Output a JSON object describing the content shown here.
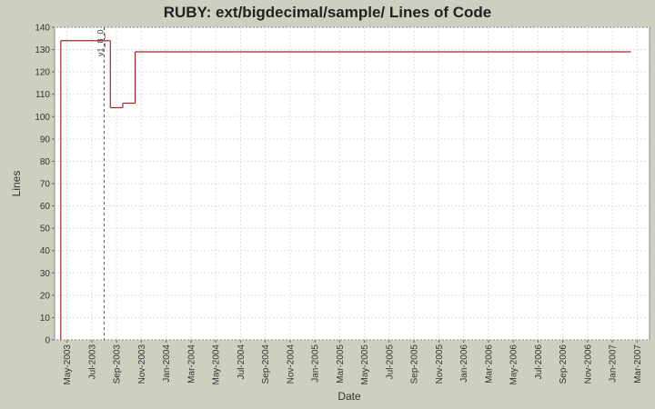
{
  "chart_data": {
    "type": "step",
    "title": "RUBY: ext/bigdecimal/sample/ Lines of Code",
    "x_label": "Date",
    "y_label": "Lines",
    "x": [
      "2003-04",
      "2003-08",
      "2003-09",
      "2003-10",
      "2007-02"
    ],
    "series": [
      {
        "name": "Lines",
        "color": "#a0282d",
        "values": [
          134,
          104,
          106,
          129,
          129
        ]
      }
    ],
    "xlim": [
      "2003-04",
      "2007-04"
    ],
    "xticks": [
      {
        "value": "2003-05",
        "label": "May-2003"
      },
      {
        "value": "2003-07",
        "label": "Jul-2003"
      },
      {
        "value": "2003-09",
        "label": "Sep-2003"
      },
      {
        "value": "2003-11",
        "label": "Nov-2003"
      },
      {
        "value": "2004-01",
        "label": "Jan-2004"
      },
      {
        "value": "2004-03",
        "label": "Mar-2004"
      },
      {
        "value": "2004-05",
        "label": "May-2004"
      },
      {
        "value": "2004-07",
        "label": "Jul-2004"
      },
      {
        "value": "2004-09",
        "label": "Sep-2004"
      },
      {
        "value": "2004-11",
        "label": "Nov-2004"
      },
      {
        "value": "2005-01",
        "label": "Jan-2005"
      },
      {
        "value": "2005-03",
        "label": "Mar-2005"
      },
      {
        "value": "2005-05",
        "label": "May-2005"
      },
      {
        "value": "2005-07",
        "label": "Jul-2005"
      },
      {
        "value": "2005-09",
        "label": "Sep-2005"
      },
      {
        "value": "2005-11",
        "label": "Nov-2005"
      },
      {
        "value": "2006-01",
        "label": "Jan-2006"
      },
      {
        "value": "2006-03",
        "label": "Mar-2006"
      },
      {
        "value": "2006-05",
        "label": "May-2006"
      },
      {
        "value": "2006-07",
        "label": "Jul-2006"
      },
      {
        "value": "2006-09",
        "label": "Sep-2006"
      },
      {
        "value": "2006-11",
        "label": "Nov-2006"
      },
      {
        "value": "2007-01",
        "label": "Jan-2007"
      },
      {
        "value": "2007-03",
        "label": "Mar-2007"
      }
    ],
    "ylim": [
      0,
      140
    ],
    "yticks": [
      0,
      10,
      20,
      30,
      40,
      50,
      60,
      70,
      80,
      90,
      100,
      110,
      120,
      130,
      140
    ],
    "grid": true,
    "annotations": [
      {
        "label": "v1_8_0",
        "x": "2003-08"
      }
    ]
  }
}
